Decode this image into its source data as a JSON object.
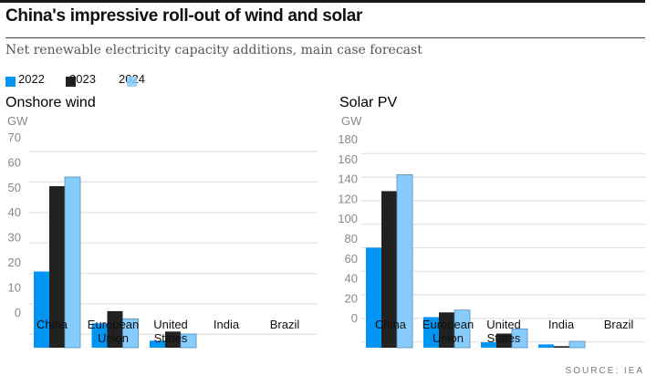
{
  "header": {
    "title": "China's impressive roll-out of wind and solar",
    "subtitle": "Net renewable electricity capacity additions, main case forecast"
  },
  "legend": [
    {
      "label": "2022",
      "color": "#0094f5"
    },
    {
      "label": "2023",
      "color": "#222222"
    },
    {
      "label": "2024",
      "color": "#86ccff"
    }
  ],
  "source": "SOURCE: IEA",
  "chart_data": [
    {
      "type": "bar",
      "title": "Onshore wind",
      "ylabel": "GW",
      "ylim": [
        0,
        70
      ],
      "yticks": [
        "70",
        "60",
        "50",
        "40",
        "30",
        "20",
        "10",
        "0"
      ],
      "categories": [
        [
          "China"
        ],
        [
          "European",
          "Union"
        ],
        [
          "United",
          "States"
        ],
        [
          "India"
        ],
        [
          "Brazil"
        ]
      ],
      "series": [
        {
          "name": "2022",
          "values": [
            25,
            8,
            2.3,
            0,
            0
          ]
        },
        {
          "name": "2023",
          "values": [
            53,
            12,
            5.3,
            0,
            0
          ]
        },
        {
          "name": "2024",
          "values": [
            56,
            9.5,
            4.5,
            0,
            0
          ]
        }
      ]
    },
    {
      "type": "bar",
      "title": "Solar PV",
      "ylabel": "GW",
      "ylim": [
        0,
        180
      ],
      "yticks": [
        "180",
        "160",
        "140",
        "120",
        "100",
        "80",
        "60",
        "40",
        "20",
        "0"
      ],
      "categories": [
        [
          "China"
        ],
        [
          "European",
          "Union"
        ],
        [
          "United",
          "States"
        ],
        [
          "India"
        ],
        [
          "Brazil"
        ]
      ],
      "series": [
        {
          "name": "2022",
          "values": [
            85,
            26,
            4.6,
            2.8,
            0
          ]
        },
        {
          "name": "2023",
          "values": [
            133,
            30,
            12,
            1.3,
            0
          ]
        },
        {
          "name": "2024",
          "values": [
            147,
            32,
            16,
            5.4,
            0
          ]
        }
      ]
    }
  ]
}
